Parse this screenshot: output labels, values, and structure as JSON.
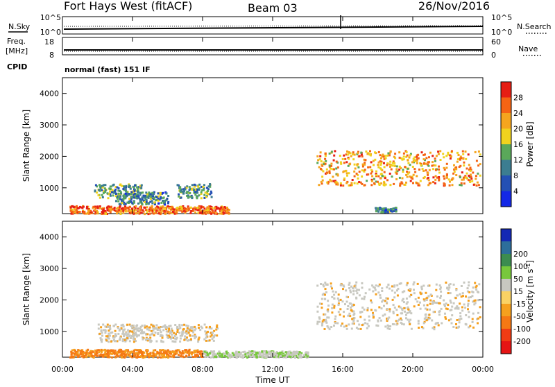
{
  "header": {
    "left_title": "Fort Hays West (fitACF)",
    "center_title": "Beam 03",
    "right_title": "26/Nov/2016"
  },
  "top_panels": {
    "noise": {
      "left_label": "N.Sky",
      "right_label": "N.Search",
      "left_ticks": [
        "10^5",
        "10^0"
      ],
      "right_ticks": [
        "10^5",
        "10^0"
      ]
    },
    "freq": {
      "left_label_1": "Freq.",
      "left_label_2": "[MHz]",
      "left_ticks": [
        "18",
        "8"
      ],
      "right_label": "Nave",
      "right_ticks": [
        "60",
        "0"
      ]
    },
    "cpid": {
      "label": "CPID",
      "value": "normal (fast) 151 IF"
    }
  },
  "chart_data": [
    {
      "type": "heatmap",
      "title": "",
      "xlabel": "Time UT",
      "ylabel": "Slant Range [km]",
      "xlim": [
        "00:00",
        "24:00"
      ],
      "ylim": [
        180,
        4500
      ],
      "x_ticks": [
        "00:00",
        "04:00",
        "08:00",
        "12:00",
        "16:00",
        "20:00",
        "00:00"
      ],
      "y_ticks": [
        1000,
        2000,
        3000,
        4000
      ],
      "colorbar": {
        "label": "Power [dB]",
        "ticks": [
          4,
          8,
          12,
          16,
          20,
          24,
          28
        ],
        "range": [
          0,
          32
        ],
        "colors": [
          "#1428e6",
          "#2450b4",
          "#3c7d91",
          "#5aa85a",
          "#f0d21e",
          "#f5a51e",
          "#f56414",
          "#e61e14"
        ]
      },
      "regions": [
        {
          "t_start": 0.4,
          "t_end": 9.5,
          "r_min": 200,
          "r_max": 450,
          "level": 26
        },
        {
          "t_start": 1.8,
          "t_end": 4.5,
          "r_min": 700,
          "r_max": 1150,
          "level": 12
        },
        {
          "t_start": 3.0,
          "t_end": 6.0,
          "r_min": 500,
          "r_max": 900,
          "level": 10
        },
        {
          "t_start": 6.5,
          "t_end": 8.5,
          "r_min": 700,
          "r_max": 1150,
          "level": 12
        },
        {
          "t_start": 14.5,
          "t_end": 23.8,
          "r_min": 1100,
          "r_max": 2200,
          "level": 22
        },
        {
          "t_start": 17.8,
          "t_end": 19.0,
          "r_min": 250,
          "r_max": 400,
          "level": 10
        }
      ]
    },
    {
      "type": "heatmap",
      "title": "",
      "xlabel": "Time UT",
      "ylabel": "Slant Range [km]",
      "xlim": [
        "00:00",
        "24:00"
      ],
      "ylim": [
        180,
        4500
      ],
      "x_ticks": [
        "00:00",
        "04:00",
        "08:00",
        "12:00",
        "16:00",
        "20:00",
        "00:00"
      ],
      "y_ticks": [
        1000,
        2000,
        3000,
        4000
      ],
      "colorbar": {
        "label": "Velocity [m s^-1]",
        "ticks": [
          -200,
          -100,
          -50,
          -15,
          15,
          50,
          100,
          200
        ],
        "colors": [
          "#e61414",
          "#f03c14",
          "#f57814",
          "#f5a01e",
          "#fad264",
          "#c8c8c0",
          "#78c83c",
          "#3c8c50",
          "#2d6e9b",
          "#1428b4"
        ]
      },
      "regions": [
        {
          "t_start": 0.4,
          "t_end": 8.0,
          "r_min": 200,
          "r_max": 450,
          "velocity": -60
        },
        {
          "t_start": 2.0,
          "t_end": 8.8,
          "r_min": 700,
          "r_max": 1250,
          "velocity": 0
        },
        {
          "t_start": 8.0,
          "t_end": 14.0,
          "r_min": 200,
          "r_max": 400,
          "velocity": 40
        },
        {
          "t_start": 14.5,
          "t_end": 23.8,
          "r_min": 1100,
          "r_max": 2600,
          "velocity": 0
        }
      ]
    }
  ]
}
